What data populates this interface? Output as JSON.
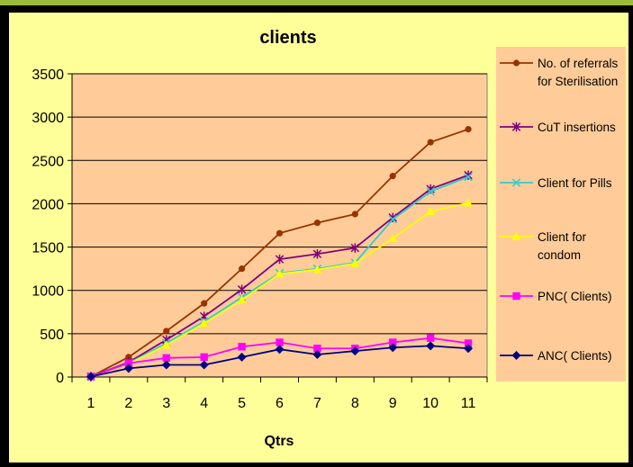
{
  "chart_data": {
    "type": "line",
    "title": "clients",
    "xlabel": "Qtrs",
    "ylabel": "",
    "categories": [
      "1",
      "2",
      "3",
      "4",
      "5",
      "6",
      "7",
      "8",
      "9",
      "10",
      "11"
    ],
    "ylim": [
      0,
      3500
    ],
    "yticks": [
      0,
      500,
      1000,
      1500,
      2000,
      2500,
      3000,
      3500
    ],
    "grid": "horizontal",
    "legend_position": "right",
    "plot_background": "#ffcc99",
    "panel_background": "#ffff99",
    "series": [
      {
        "name": "No. of referrals for Sterilisation",
        "color": "#993300",
        "marker": "circle",
        "values": [
          5,
          230,
          530,
          850,
          1250,
          1660,
          1780,
          1880,
          2320,
          2710,
          2860
        ]
      },
      {
        "name": "CuT insertions",
        "color": "#800080",
        "marker": "star",
        "values": [
          5,
          170,
          430,
          700,
          1010,
          1360,
          1420,
          1490,
          1840,
          2170,
          2330
        ]
      },
      {
        "name": "Client for Pills",
        "color": "#33cccc",
        "marker": "x",
        "values": [
          5,
          160,
          390,
          640,
          920,
          1200,
          1250,
          1320,
          1820,
          2140,
          2310
        ]
      },
      {
        "name": "Client for condom",
        "color": "#ffff00",
        "marker": "triangle",
        "values": [
          5,
          150,
          370,
          620,
          890,
          1190,
          1240,
          1310,
          1600,
          1910,
          2010
        ]
      },
      {
        "name": "PNC( Clients)",
        "color": "#ff00ff",
        "marker": "square",
        "values": [
          5,
          160,
          220,
          230,
          350,
          400,
          330,
          330,
          400,
          450,
          390
        ]
      },
      {
        "name": "ANC( Clients)",
        "color": "#000080",
        "marker": "diamond",
        "values": [
          5,
          100,
          140,
          140,
          230,
          320,
          260,
          300,
          340,
          360,
          330
        ]
      }
    ]
  }
}
